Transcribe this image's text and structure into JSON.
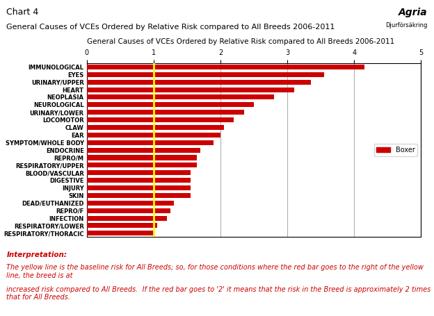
{
  "chart_data": {
    "type": "bar",
    "orientation": "horizontal",
    "title": "Chart 4",
    "subtitle": "General Causes of VCEs Ordered by Relative Risk compared to All Breeds 2006-2011",
    "axes_title": "General Causes of VCEs Ordered by Relative Risk compared to All Breeds 2006-2011",
    "logo": "Agria",
    "logo_subtitle": "Djurförsäkring",
    "categories": [
      "RESPIRATORY/THORACIC",
      "RESPIRATORY/LOWER",
      "INFECTION",
      "REPRO/F",
      "DEAD/EUTHANIZED",
      "SKIN",
      "INJURY",
      "DIGESTIVE",
      "BLOOD/VASCULAR",
      "RESPIRATORY/UPPER",
      "REPRO/M",
      "ENDOCRINE",
      "SYMPTOM/WHOLE BODY",
      "EAR",
      "CLAW",
      "LOCOMOTOR",
      "URINARY/LOWER",
      "NEUROLOGICAL",
      "NEOPLASIA",
      "HEART",
      "URINARY/UPPER",
      "EYES",
      "IMMUNOLOGICAL"
    ],
    "series": [
      {
        "name": "Boxer",
        "color": "#cc0000",
        "values": [
          1.0,
          1.05,
          1.2,
          1.25,
          1.3,
          1.55,
          1.55,
          1.55,
          1.55,
          1.65,
          1.65,
          1.7,
          1.9,
          2.0,
          2.05,
          2.2,
          2.35,
          2.5,
          2.8,
          3.1,
          3.35,
          3.55,
          4.15
        ]
      }
    ],
    "xlim": [
      0,
      5
    ],
    "xticks": [
      0,
      1,
      2,
      3,
      4,
      5
    ],
    "grid": true,
    "legend": "center right",
    "reference_line": {
      "value": 1.0,
      "color": "#ffff00"
    },
    "annotations": [
      "Interpretation:",
      "The yellow line is the baseline risk for All Breeds; so, for those conditions where the red bar goes to the right of the yellow line, the breed is at",
      "increased risk compared to All Breeds.  If the red bar goes to '2' it means that the risk in the Breed is approximately 2 times that for All Breeds."
    ]
  }
}
